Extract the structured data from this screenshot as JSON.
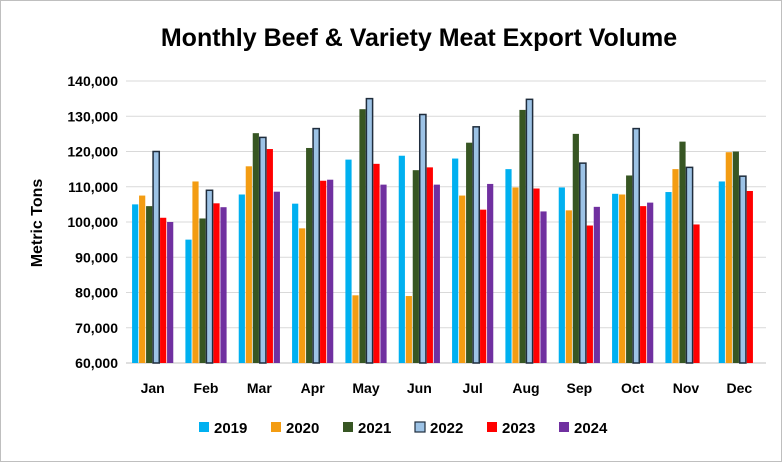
{
  "chart_data": {
    "type": "bar",
    "title": "Monthly Beef & Variety Meat Export Volume",
    "xlabel": "",
    "ylabel": "Metric Tons",
    "ylim": [
      60000,
      140000
    ],
    "yticks": [
      60000,
      70000,
      80000,
      90000,
      100000,
      110000,
      120000,
      130000,
      140000
    ],
    "ytick_labels": [
      "60,000",
      "70,000",
      "80,000",
      "90,000",
      "100,000",
      "110,000",
      "120,000",
      "130,000",
      "140,000"
    ],
    "grid": "horizontal",
    "legend_position": "bottom",
    "categories": [
      "Jan",
      "Feb",
      "Mar",
      "Apr",
      "May",
      "Jun",
      "Jul",
      "Aug",
      "Sep",
      "Oct",
      "Nov",
      "Dec"
    ],
    "series": [
      {
        "name": "2019",
        "color": "#00b0f0",
        "values": [
          105000,
          95000,
          107800,
          105200,
          117700,
          118800,
          118000,
          115000,
          109800,
          108000,
          108500,
          111500
        ]
      },
      {
        "name": "2020",
        "color": "#f39c12",
        "values": [
          107500,
          111500,
          115800,
          98200,
          79200,
          79000,
          107500,
          109800,
          103300,
          107800,
          115000,
          119800
        ]
      },
      {
        "name": "2021",
        "color": "#375623",
        "values": [
          104500,
          101000,
          125200,
          121000,
          132000,
          114700,
          122500,
          131800,
          125000,
          113200,
          122800,
          120000
        ]
      },
      {
        "name": "2022",
        "color": "#9dc3e6",
        "outline": "#1f2d3d",
        "values": [
          120000,
          109000,
          124000,
          126500,
          135000,
          130500,
          127000,
          134800,
          116700,
          126500,
          115500,
          113000
        ]
      },
      {
        "name": "2023",
        "color": "#ff0000",
        "values": [
          101200,
          105300,
          120700,
          111700,
          116500,
          115500,
          103500,
          109500,
          99000,
          104500,
          99300,
          108800
        ]
      },
      {
        "name": "2024",
        "color": "#7030a0",
        "values": [
          100000,
          104200,
          108600,
          112000,
          110600,
          110600,
          110800,
          103000,
          104300,
          105500,
          null,
          null
        ]
      }
    ]
  }
}
